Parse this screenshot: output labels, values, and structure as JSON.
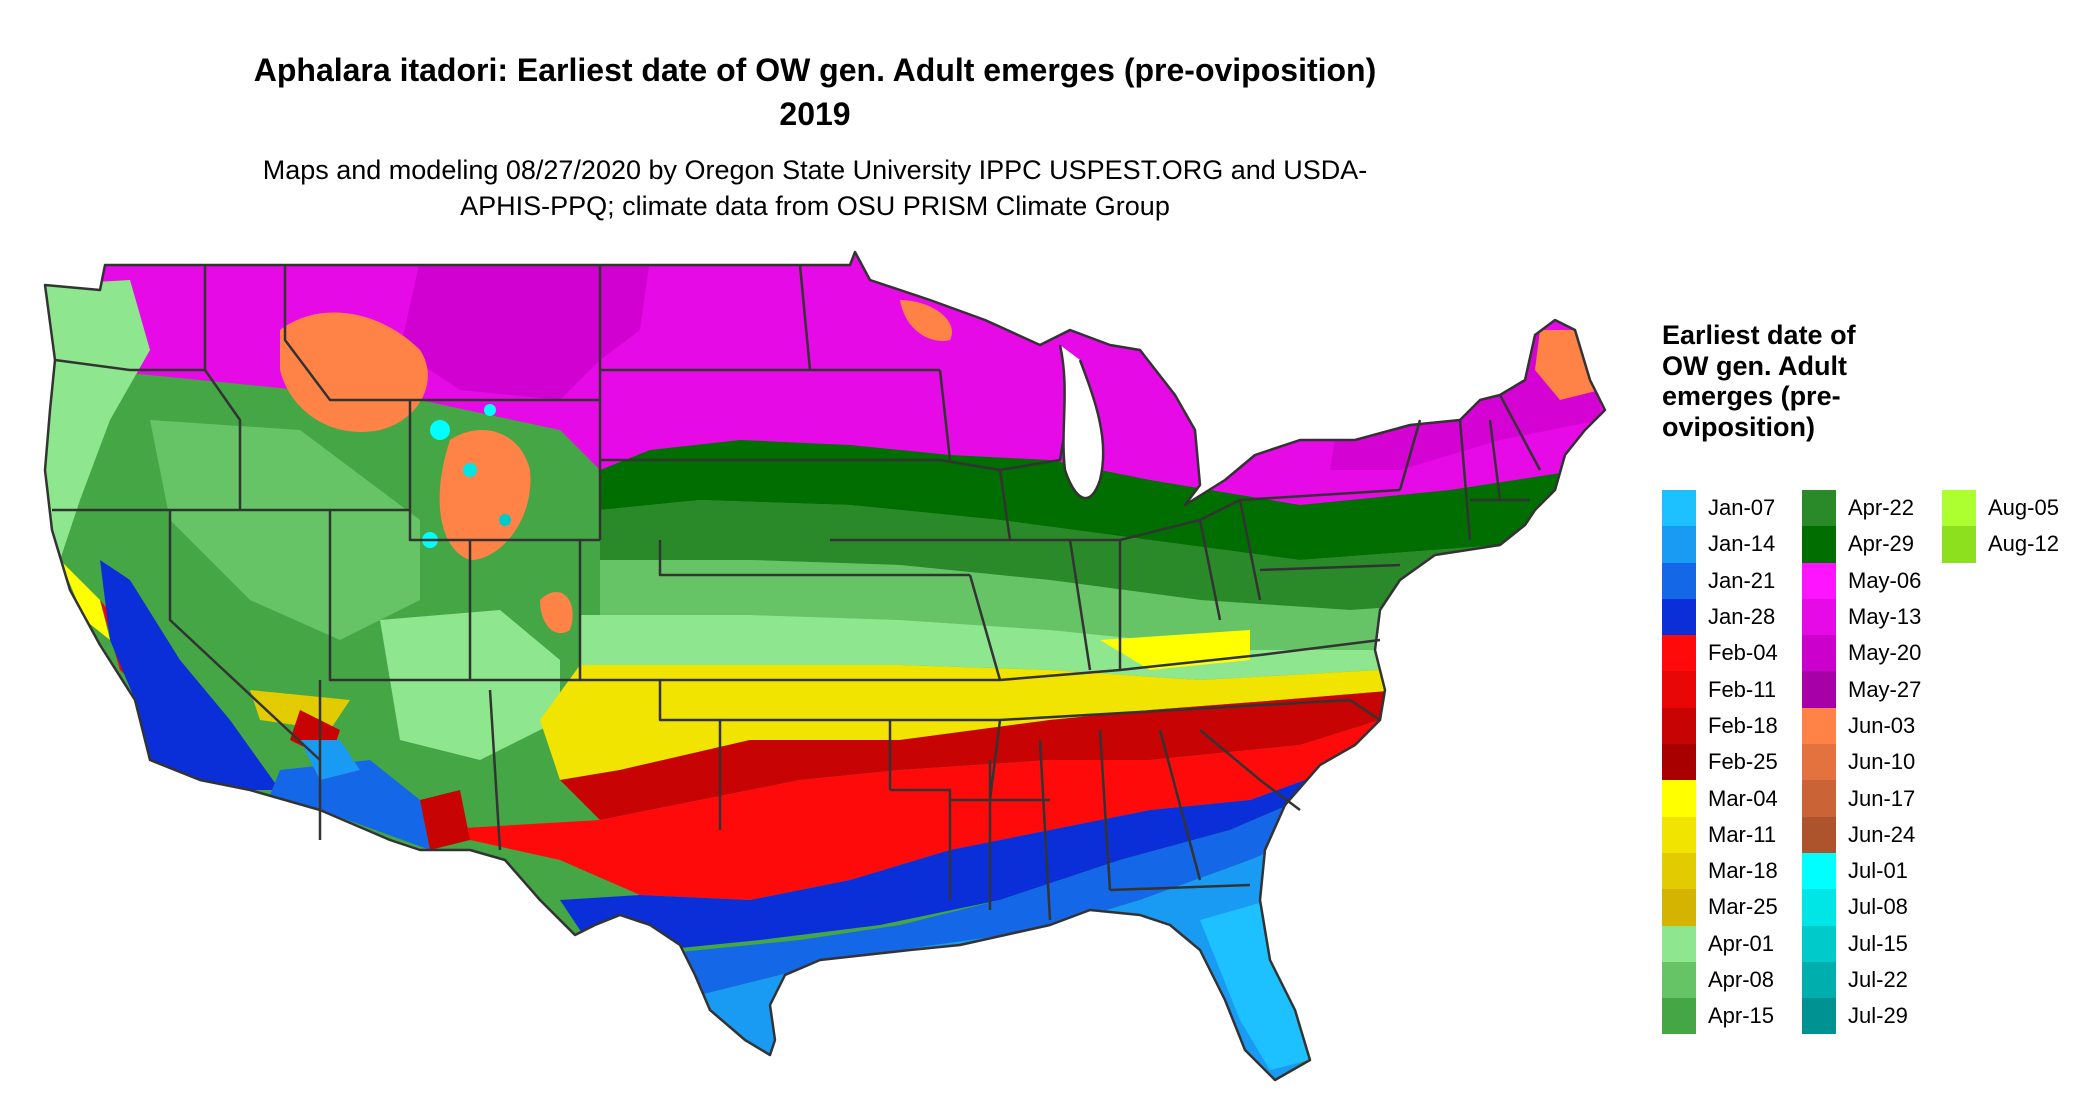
{
  "title": "Aphalara itadori: Earliest date of OW gen. Adult emerges (pre-oviposition) 2019",
  "subtitle": "Maps and modeling 08/27/2020 by Oregon State University IPPC USPEST.ORG and USDA-APHIS-PPQ; climate data from OSU PRISM Climate Group",
  "legend": {
    "title": "Earliest date of OW gen. Adult emerges (pre-oviposition)",
    "columns": [
      [
        {
          "label": "Jan-07",
          "color": "#1EC1FF"
        },
        {
          "label": "Jan-14",
          "color": "#1A9BF3"
        },
        {
          "label": "Jan-21",
          "color": "#1467E6"
        },
        {
          "label": "Jan-28",
          "color": "#0A2FD8"
        },
        {
          "label": "Feb-04",
          "color": "#FF0A0A"
        },
        {
          "label": "Feb-11",
          "color": "#E80606"
        },
        {
          "label": "Feb-18",
          "color": "#C80303"
        },
        {
          "label": "Feb-25",
          "color": "#A80000"
        },
        {
          "label": "Mar-04",
          "color": "#FFFF00"
        },
        {
          "label": "Mar-11",
          "color": "#F0E400"
        },
        {
          "label": "Mar-18",
          "color": "#E2CB00"
        },
        {
          "label": "Mar-25",
          "color": "#D4B400"
        },
        {
          "label": "Apr-01",
          "color": "#8EE68E"
        },
        {
          "label": "Apr-08",
          "color": "#66C466"
        },
        {
          "label": "Apr-15",
          "color": "#45A645"
        }
      ],
      [
        {
          "label": "Apr-22",
          "color": "#2A8A2A"
        },
        {
          "label": "Apr-29",
          "color": "#006E00"
        },
        {
          "label": "May-06",
          "color": "#FF14FF"
        },
        {
          "label": "May-13",
          "color": "#E60AE6"
        },
        {
          "label": "May-20",
          "color": "#CC00CC"
        },
        {
          "label": "May-27",
          "color": "#A800A8"
        },
        {
          "label": "Jun-03",
          "color": "#FF8246"
        },
        {
          "label": "Jun-10",
          "color": "#E4723E"
        },
        {
          "label": "Jun-17",
          "color": "#CA6436"
        },
        {
          "label": "Jun-24",
          "color": "#AE542C"
        },
        {
          "label": "Jul-01",
          "color": "#00FFFF"
        },
        {
          "label": "Jul-08",
          "color": "#00E5E5"
        },
        {
          "label": "Jul-15",
          "color": "#00CACA"
        },
        {
          "label": "Jul-22",
          "color": "#00AEAE"
        },
        {
          "label": "Jul-29",
          "color": "#009292"
        }
      ],
      [
        {
          "label": "Aug-05",
          "color": "#ADFF2F"
        },
        {
          "label": "Aug-12",
          "color": "#8CE01E"
        }
      ]
    ]
  }
}
